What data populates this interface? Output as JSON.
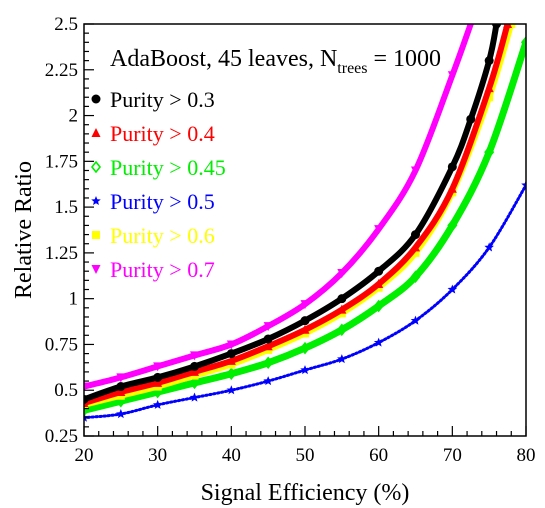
{
  "chart_data": {
    "type": "line",
    "title": "AdaBoost, 45 leaves, N",
    "title_sub": "trees",
    "title_suffix": " = 1000",
    "xlabel": "Signal Efficiency (%)",
    "ylabel": "Relative Ratio",
    "xlim": [
      20,
      80
    ],
    "ylim": [
      0.25,
      2.5
    ],
    "x_ticks": [
      20,
      30,
      40,
      50,
      60,
      70,
      80
    ],
    "x_tick_labels": [
      "20",
      "30",
      "40",
      "50",
      "60",
      "70",
      "80"
    ],
    "y_ticks": [
      0.25,
      0.5,
      0.75,
      1,
      1.25,
      1.5,
      1.75,
      2,
      2.25,
      2.5
    ],
    "y_tick_labels": [
      "0.25",
      "0.5",
      "0.75",
      "1",
      "1.25",
      "1.5",
      "1.75",
      "2",
      "2.25",
      "2.5"
    ],
    "grid": false,
    "legend_position": "top-left",
    "series": [
      {
        "name": "Purity > 0.3",
        "color": "#000000",
        "marker": "circle",
        "x": [
          20,
          25,
          30,
          35,
          40,
          45,
          50,
          55,
          60,
          65,
          70,
          72.5,
          75,
          76
        ],
        "y": [
          0.45,
          0.52,
          0.57,
          0.63,
          0.7,
          0.78,
          0.88,
          1.0,
          1.15,
          1.35,
          1.72,
          1.98,
          2.3,
          2.5
        ]
      },
      {
        "name": "Purity > 0.4",
        "color": "#ff0000",
        "marker": "triangle-up",
        "x": [
          20,
          25,
          30,
          35,
          40,
          45,
          50,
          55,
          60,
          65,
          70,
          75,
          77.5
        ],
        "y": [
          0.43,
          0.49,
          0.54,
          0.6,
          0.66,
          0.74,
          0.83,
          0.94,
          1.08,
          1.28,
          1.6,
          2.15,
          2.5
        ]
      },
      {
        "name": "Purity > 0.45",
        "color": "#00ee00",
        "marker": "diamond-open",
        "x": [
          20,
          25,
          30,
          35,
          40,
          45,
          50,
          55,
          60,
          65,
          70,
          75,
          80
        ],
        "y": [
          0.39,
          0.44,
          0.49,
          0.54,
          0.59,
          0.65,
          0.73,
          0.83,
          0.96,
          1.12,
          1.4,
          1.8,
          2.4
        ]
      },
      {
        "name": "Purity > 0.5",
        "color": "#0000ff",
        "marker": "star",
        "x": [
          20,
          25,
          30,
          35,
          40,
          45,
          50,
          55,
          60,
          65,
          70,
          75,
          80
        ],
        "y": [
          0.35,
          0.37,
          0.42,
          0.46,
          0.5,
          0.55,
          0.61,
          0.67,
          0.76,
          0.88,
          1.05,
          1.28,
          1.62
        ]
      },
      {
        "name": "Purity > 0.6",
        "color": "#ffff00",
        "marker": "square",
        "x": [
          20,
          25,
          30,
          35,
          40,
          45,
          50,
          55,
          60,
          65,
          70,
          75,
          78
        ],
        "y": [
          0.42,
          0.47,
          0.52,
          0.58,
          0.64,
          0.72,
          0.81,
          0.92,
          1.06,
          1.25,
          1.58,
          2.1,
          2.5
        ]
      },
      {
        "name": "Purity > 0.7",
        "color": "#ff00ff",
        "marker": "triangle-down",
        "x": [
          20,
          25,
          30,
          35,
          40,
          45,
          50,
          55,
          60,
          65,
          70,
          72.5
        ],
        "y": [
          0.52,
          0.57,
          0.63,
          0.69,
          0.75,
          0.85,
          0.97,
          1.14,
          1.38,
          1.7,
          2.22,
          2.5
        ]
      }
    ]
  }
}
